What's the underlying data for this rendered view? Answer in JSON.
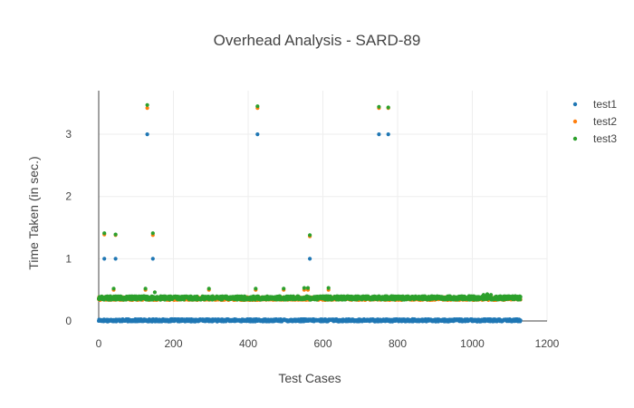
{
  "chart_data": {
    "type": "scatter",
    "title": "Overhead Analysis - SARD-89",
    "xlabel": "Test Cases",
    "ylabel": "Time Taken (in sec.)",
    "xlim": [
      0,
      1200
    ],
    "ylim": [
      0,
      3.7
    ],
    "x_ticks": [
      "0",
      "200",
      "400",
      "600",
      "800",
      "1000",
      "1200"
    ],
    "y_ticks": [
      "0",
      "1",
      "2",
      "3"
    ],
    "grid": true,
    "legend_position": "top-right",
    "n_points_per_series": 1130,
    "series": [
      {
        "name": "test1",
        "color": "#1f77b4",
        "baseline": 0.01,
        "baseline_noise": 0.04,
        "outliers": [
          [
            15,
            1.0
          ],
          [
            45,
            1.0
          ],
          [
            130,
            3.0
          ],
          [
            145,
            1.0
          ],
          [
            425,
            3.0
          ],
          [
            565,
            1.0
          ],
          [
            750,
            3.0
          ],
          [
            775,
            3.0
          ]
        ]
      },
      {
        "name": "test2",
        "color": "#ff7f0e",
        "baseline": 0.36,
        "baseline_noise": 0.05,
        "outliers": [
          [
            15,
            1.39
          ],
          [
            45,
            1.38
          ],
          [
            40,
            0.5
          ],
          [
            125,
            0.5
          ],
          [
            130,
            3.42
          ],
          [
            145,
            1.38
          ],
          [
            295,
            0.5
          ],
          [
            420,
            0.5
          ],
          [
            425,
            3.42
          ],
          [
            495,
            0.5
          ],
          [
            550,
            0.5
          ],
          [
            560,
            0.5
          ],
          [
            565,
            1.36
          ],
          [
            615,
            0.5
          ],
          [
            750,
            3.42
          ],
          [
            775,
            3.42
          ]
        ]
      },
      {
        "name": "test3",
        "color": "#2ca02c",
        "baseline": 0.37,
        "baseline_noise": 0.06,
        "outliers": [
          [
            15,
            1.41
          ],
          [
            45,
            1.39
          ],
          [
            40,
            0.52
          ],
          [
            125,
            0.52
          ],
          [
            130,
            3.47
          ],
          [
            145,
            1.41
          ],
          [
            150,
            0.46
          ],
          [
            295,
            0.52
          ],
          [
            420,
            0.52
          ],
          [
            425,
            3.45
          ],
          [
            495,
            0.52
          ],
          [
            550,
            0.53
          ],
          [
            560,
            0.53
          ],
          [
            565,
            1.38
          ],
          [
            615,
            0.53
          ],
          [
            750,
            3.44
          ],
          [
            775,
            3.43
          ],
          [
            1030,
            0.42
          ],
          [
            1040,
            0.43
          ],
          [
            1050,
            0.42
          ]
        ]
      }
    ]
  }
}
